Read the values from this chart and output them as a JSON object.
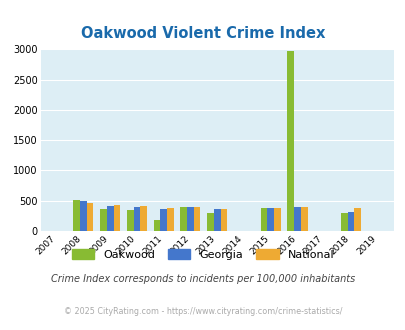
{
  "title": "Oakwood Violent Crime Index",
  "title_color": "#1a6aab",
  "years": [
    2007,
    2008,
    2009,
    2010,
    2011,
    2012,
    2013,
    2014,
    2015,
    2016,
    2017,
    2018,
    2019
  ],
  "oakwood": [
    0,
    510,
    360,
    350,
    175,
    400,
    290,
    0,
    380,
    2980,
    0,
    295,
    0
  ],
  "georgia": [
    0,
    490,
    420,
    400,
    365,
    390,
    360,
    0,
    380,
    390,
    0,
    320,
    0
  ],
  "national": [
    0,
    460,
    425,
    410,
    385,
    390,
    370,
    0,
    375,
    400,
    0,
    375,
    0
  ],
  "oakwood_color": "#88bb33",
  "georgia_color": "#4477cc",
  "national_color": "#eeaa33",
  "bg_color": "#ddeef5",
  "ylim": [
    0,
    3000
  ],
  "yticks": [
    0,
    500,
    1000,
    1500,
    2000,
    2500,
    3000
  ],
  "footnote1": "Crime Index corresponds to incidents per 100,000 inhabitants",
  "footnote2": "© 2025 CityRating.com - https://www.cityrating.com/crime-statistics/",
  "footnote1_color": "#444444",
  "footnote2_color": "#aaaaaa",
  "bar_width": 0.25
}
